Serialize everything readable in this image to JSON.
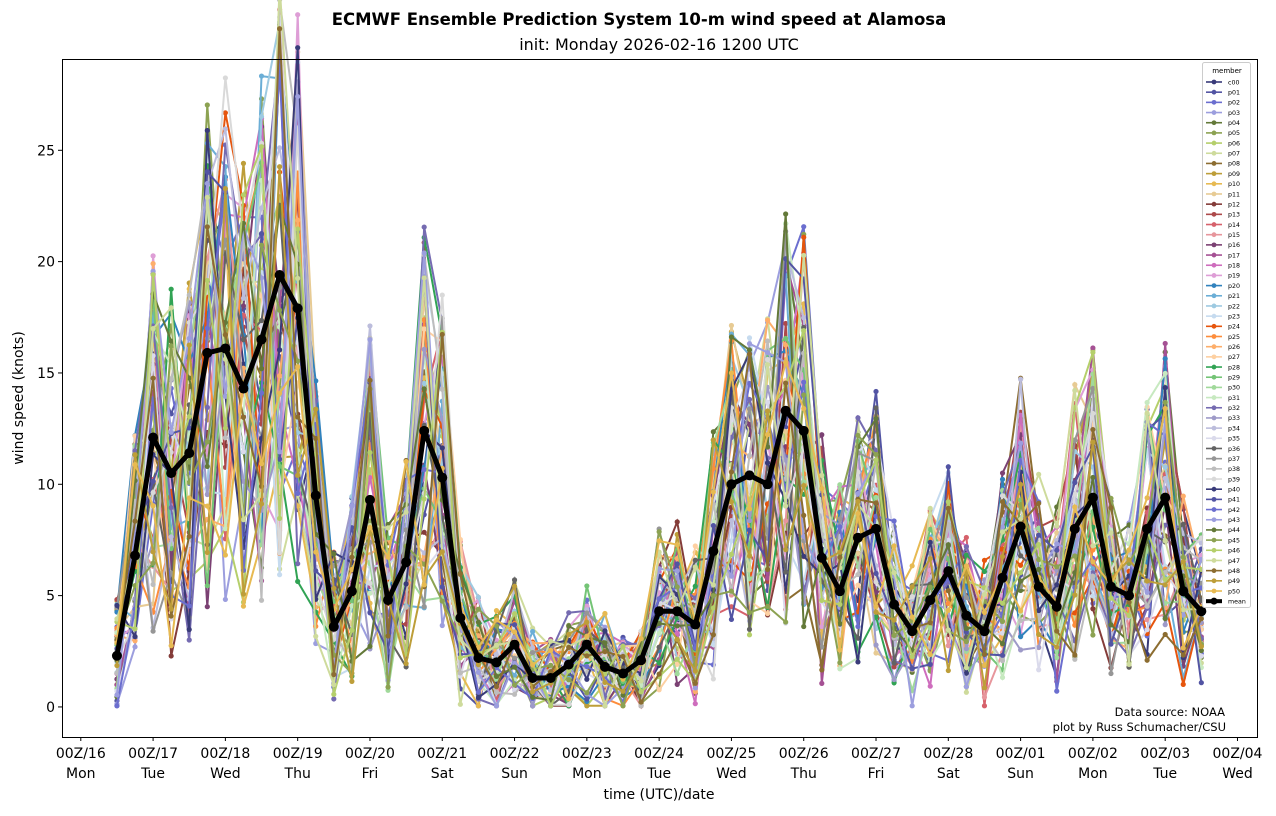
{
  "chart_data": {
    "type": "line",
    "title": "ECMWF Ensemble Prediction System 10-m wind speed at Alamosa",
    "subtitle": "init: Monday 2026-02-16 1200 UTC",
    "xlabel": "time (UTC)/date",
    "ylabel": "wind speed (knots)",
    "ylim": [
      -1.35,
      29.1
    ],
    "xlim_days_since_00Z16": [
      -0.26,
      16.27
    ],
    "grid": false,
    "legend_title": "member",
    "legend_placement": "top-right",
    "x_start": "2026-02-16 12Z",
    "x_step_hours": 6,
    "y_ticks": [
      "0",
      "5",
      "10",
      "15",
      "20",
      "25"
    ],
    "y_tick_values": [
      0,
      5,
      10,
      15,
      20,
      25
    ],
    "x_ticks": [
      {
        "time": "00Z/16",
        "day": "Mon"
      },
      {
        "time": "00Z/17",
        "day": "Tue"
      },
      {
        "time": "00Z/18",
        "day": "Wed"
      },
      {
        "time": "00Z/19",
        "day": "Thu"
      },
      {
        "time": "00Z/20",
        "day": "Fri"
      },
      {
        "time": "00Z/21",
        "day": "Sat"
      },
      {
        "time": "00Z/22",
        "day": "Sun"
      },
      {
        "time": "00Z/23",
        "day": "Mon"
      },
      {
        "time": "00Z/24",
        "day": "Tue"
      },
      {
        "time": "00Z/25",
        "day": "Wed"
      },
      {
        "time": "00Z/26",
        "day": "Thu"
      },
      {
        "time": "00Z/27",
        "day": "Fri"
      },
      {
        "time": "00Z/28",
        "day": "Sat"
      },
      {
        "time": "00Z/01",
        "day": "Sun"
      },
      {
        "time": "00Z/02",
        "day": "Mon"
      },
      {
        "time": "00Z/03",
        "day": "Tue"
      },
      {
        "time": "00Z/04",
        "day": "Wed"
      }
    ],
    "mean": {
      "name": "mean",
      "color": "#000000",
      "values": [
        2.3,
        6.8,
        12.1,
        10.5,
        11.4,
        15.9,
        16.1,
        14.3,
        16.5,
        19.4,
        17.9,
        9.5,
        3.6,
        5.2,
        9.3,
        4.8,
        6.5,
        12.4,
        10.3,
        4.0,
        2.2,
        2.0,
        2.8,
        1.3,
        1.3,
        1.9,
        2.8,
        1.8,
        1.5,
        2.1,
        4.3,
        4.3,
        3.7,
        7.0,
        10.0,
        10.4,
        10.0,
        13.3,
        12.4,
        6.7,
        5.2,
        7.6,
        8.0,
        4.6,
        3.4,
        4.8,
        6.1,
        4.1,
        3.4,
        5.8,
        8.1,
        5.4,
        4.5,
        8.0,
        9.4,
        5.4,
        5.0,
        8.0,
        9.4,
        5.2,
        4.3
      ]
    },
    "members": [
      {
        "name": "c00",
        "color": "#393b79"
      },
      {
        "name": "p01",
        "color": "#5254a3"
      },
      {
        "name": "p02",
        "color": "#6b6ecf"
      },
      {
        "name": "p03",
        "color": "#9c9ede"
      },
      {
        "name": "p04",
        "color": "#637939"
      },
      {
        "name": "p05",
        "color": "#8ca252"
      },
      {
        "name": "p06",
        "color": "#b5cf6b"
      },
      {
        "name": "p07",
        "color": "#cedb9c"
      },
      {
        "name": "p08",
        "color": "#8c6d31"
      },
      {
        "name": "p09",
        "color": "#bd9e39"
      },
      {
        "name": "p10",
        "color": "#e7ba52"
      },
      {
        "name": "p11",
        "color": "#e7cb94"
      },
      {
        "name": "p12",
        "color": "#843c39"
      },
      {
        "name": "p13",
        "color": "#ad494a"
      },
      {
        "name": "p14",
        "color": "#d6616b"
      },
      {
        "name": "p15",
        "color": "#e7969c"
      },
      {
        "name": "p16",
        "color": "#7b4173"
      },
      {
        "name": "p17",
        "color": "#a55194"
      },
      {
        "name": "p18",
        "color": "#ce6dbd"
      },
      {
        "name": "p19",
        "color": "#de9ed6"
      },
      {
        "name": "p20",
        "color": "#3182bd"
      },
      {
        "name": "p21",
        "color": "#6baed6"
      },
      {
        "name": "p22",
        "color": "#9ecae1"
      },
      {
        "name": "p23",
        "color": "#c6dbef"
      },
      {
        "name": "p24",
        "color": "#e6550d"
      },
      {
        "name": "p25",
        "color": "#fd8d3c"
      },
      {
        "name": "p26",
        "color": "#fdae6b"
      },
      {
        "name": "p27",
        "color": "#fdd0a2"
      },
      {
        "name": "p28",
        "color": "#31a354"
      },
      {
        "name": "p29",
        "color": "#74c476"
      },
      {
        "name": "p30",
        "color": "#a1d99b"
      },
      {
        "name": "p31",
        "color": "#c7e9c0"
      },
      {
        "name": "p32",
        "color": "#756bb1"
      },
      {
        "name": "p33",
        "color": "#9e9ac8"
      },
      {
        "name": "p34",
        "color": "#bcbddc"
      },
      {
        "name": "p35",
        "color": "#dadaeb"
      },
      {
        "name": "p36",
        "color": "#636363"
      },
      {
        "name": "p37",
        "color": "#969696"
      },
      {
        "name": "p38",
        "color": "#bdbdbd"
      },
      {
        "name": "p39",
        "color": "#d9d9d9"
      },
      {
        "name": "p40",
        "color": "#393b79"
      },
      {
        "name": "p41",
        "color": "#5254a3"
      },
      {
        "name": "p42",
        "color": "#6b6ecf"
      },
      {
        "name": "p43",
        "color": "#9c9ede"
      },
      {
        "name": "p44",
        "color": "#637939"
      },
      {
        "name": "p45",
        "color": "#8ca252"
      },
      {
        "name": "p46",
        "color": "#b5cf6b"
      },
      {
        "name": "p47",
        "color": "#cedb9c"
      },
      {
        "name": "p48",
        "color": "#8c6d31"
      },
      {
        "name": "p49",
        "color": "#bd9e39"
      },
      {
        "name": "p50",
        "color": "#e7ba52"
      }
    ],
    "annotations": [
      "Data source: NOAA",
      "plot by Russ Schumacher/CSU"
    ]
  }
}
